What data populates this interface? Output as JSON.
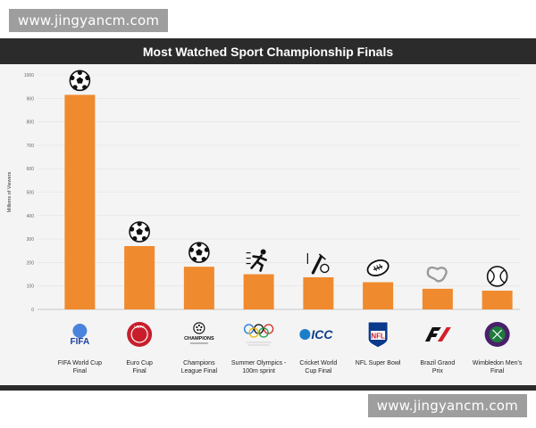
{
  "watermark_top": "www.jingyancm.com",
  "watermark_bottom": "www.jingyancm.com",
  "chart_data": {
    "type": "bar",
    "title": "Most Watched Sport Championship Finals",
    "ylabel": "Millions of Viewers",
    "xlabel": "",
    "ylim": [
      0,
      1000
    ],
    "yticks": [
      0,
      100,
      200,
      300,
      400,
      500,
      600,
      700,
      800,
      900,
      1000
    ],
    "grid": true,
    "bar_color": "#f08a2e",
    "categories": [
      [
        "FIFA World Cup",
        "Final"
      ],
      [
        "Euro Cup",
        "Final"
      ],
      [
        "Champions",
        "League Final"
      ],
      [
        "Summer Olympics -",
        "100m sprint"
      ],
      [
        "Cricket World",
        "Cup Final"
      ],
      [
        "NFL Super Bowl"
      ],
      [
        "Brazil Grand",
        "Prix"
      ],
      [
        "Wimbledon Men's",
        "Final"
      ]
    ],
    "values": [
      915,
      270,
      182,
      150,
      137,
      116,
      88,
      80
    ],
    "icons": [
      "soccer-ball-icon",
      "soccer-ball-icon",
      "soccer-ball-icon",
      "sprinter-icon",
      "cricket-icon",
      "american-football-icon",
      "race-track-icon",
      "tennis-ball-icon"
    ],
    "logos": [
      {
        "name": "fifa-logo",
        "text": "FIFA"
      },
      {
        "name": "uefa-logo",
        "text": "UEFA"
      },
      {
        "name": "champions-league-logo",
        "text": "CHAMPIONS"
      },
      {
        "name": "olympic-logo",
        "text": ""
      },
      {
        "name": "icc-logo",
        "text": "ICC"
      },
      {
        "name": "nfl-logo",
        "text": "NFL"
      },
      {
        "name": "f1-logo",
        "text": "F1"
      },
      {
        "name": "wimbledon-logo",
        "text": ""
      }
    ]
  }
}
